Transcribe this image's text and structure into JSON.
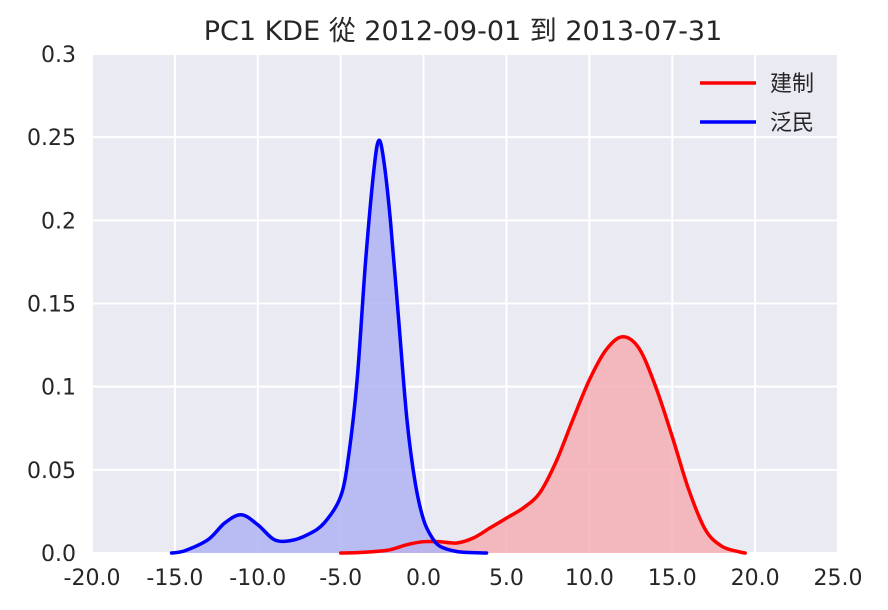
{
  "chart_data": {
    "type": "area",
    "title": "PC1 KDE 從 2012-09-01 到 2013-07-31",
    "xlabel": "",
    "ylabel": "",
    "xlim": [
      -20,
      25
    ],
    "ylim": [
      0,
      0.3
    ],
    "x_ticks": [
      "-20.0",
      "-15.0",
      "-10.0",
      "-5.0",
      "0.0",
      "5.0",
      "10.0",
      "15.0",
      "20.0",
      "25.0"
    ],
    "y_ticks": [
      "0.0",
      "0.05",
      "0.1",
      "0.15",
      "0.2",
      "0.25",
      "0.3"
    ],
    "grid": true,
    "legend_position": "top-right",
    "background": "#EAEAF2",
    "series": [
      {
        "name": "建制",
        "color": "#FF0000",
        "fill": "#F4AEB5",
        "points": [
          [
            -5,
            0
          ],
          [
            -4,
            0.0002
          ],
          [
            -3,
            0.0008
          ],
          [
            -2,
            0.002
          ],
          [
            -1,
            0.005
          ],
          [
            0,
            0.0068
          ],
          [
            1,
            0.0068
          ],
          [
            2,
            0.006
          ],
          [
            3,
            0.009
          ],
          [
            4,
            0.015
          ],
          [
            5,
            0.021
          ],
          [
            6,
            0.027
          ],
          [
            7,
            0.036
          ],
          [
            8,
            0.055
          ],
          [
            9,
            0.08
          ],
          [
            10,
            0.104
          ],
          [
            11,
            0.122
          ],
          [
            12,
            0.13
          ],
          [
            13,
            0.123
          ],
          [
            14,
            0.1
          ],
          [
            15,
            0.07
          ],
          [
            16,
            0.038
          ],
          [
            17,
            0.014
          ],
          [
            18,
            0.004
          ],
          [
            19,
            0.0008
          ],
          [
            19.4,
            0
          ]
        ]
      },
      {
        "name": "泛民",
        "color": "#0000FF",
        "fill": "#B0B3F3",
        "points": [
          [
            -15.2,
            0
          ],
          [
            -14.5,
            0.001
          ],
          [
            -13,
            0.008
          ],
          [
            -12,
            0.018
          ],
          [
            -11,
            0.023
          ],
          [
            -10,
            0.017
          ],
          [
            -9,
            0.008
          ],
          [
            -8,
            0.0075
          ],
          [
            -7,
            0.011
          ],
          [
            -6,
            0.018
          ],
          [
            -5,
            0.034
          ],
          [
            -4.5,
            0.06
          ],
          [
            -4,
            0.105
          ],
          [
            -3.5,
            0.175
          ],
          [
            -3,
            0.23
          ],
          [
            -2.7,
            0.248
          ],
          [
            -2.4,
            0.236
          ],
          [
            -2,
            0.2
          ],
          [
            -1.5,
            0.14
          ],
          [
            -1,
            0.08
          ],
          [
            -0.5,
            0.042
          ],
          [
            0,
            0.02
          ],
          [
            0.5,
            0.0095
          ],
          [
            1,
            0.004
          ],
          [
            2,
            0.0009
          ],
          [
            3,
            0.0002
          ],
          [
            3.8,
            0
          ]
        ]
      }
    ]
  }
}
